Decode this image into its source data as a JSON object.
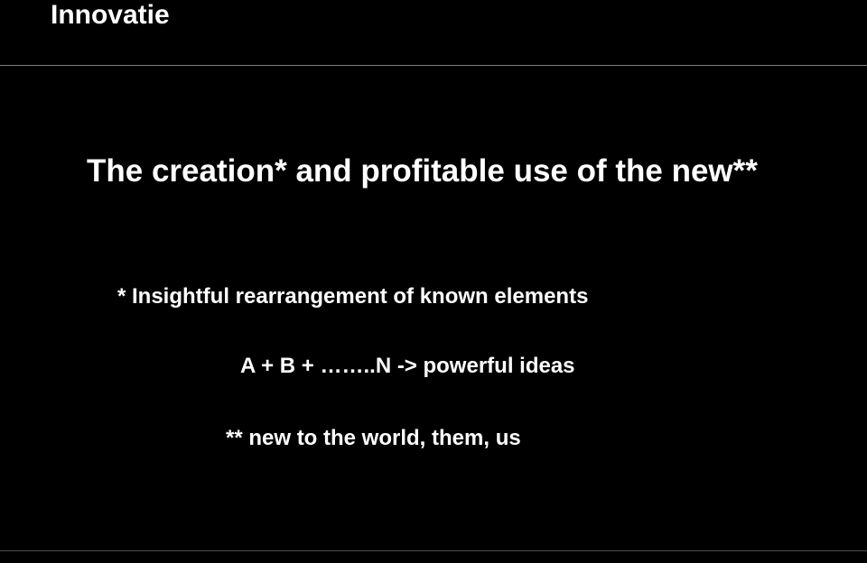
{
  "title": "Innovatie",
  "main_statement": "The creation* and profitable use of the new**",
  "footnote1": "* Insightful rearrangement of known elements",
  "footnote2": "A + B + ……..N -> powerful ideas",
  "footnote3": "** new to the world, them, us",
  "colors": {
    "background": "#000000",
    "text": "#ffffff",
    "divider": "#808080",
    "bottom_divider": "#4d4d4d"
  },
  "typography": {
    "title_fontsize": 30,
    "main_fontsize": 35,
    "note_fontsize": 24,
    "font_family": "Arial",
    "weight": "bold"
  }
}
